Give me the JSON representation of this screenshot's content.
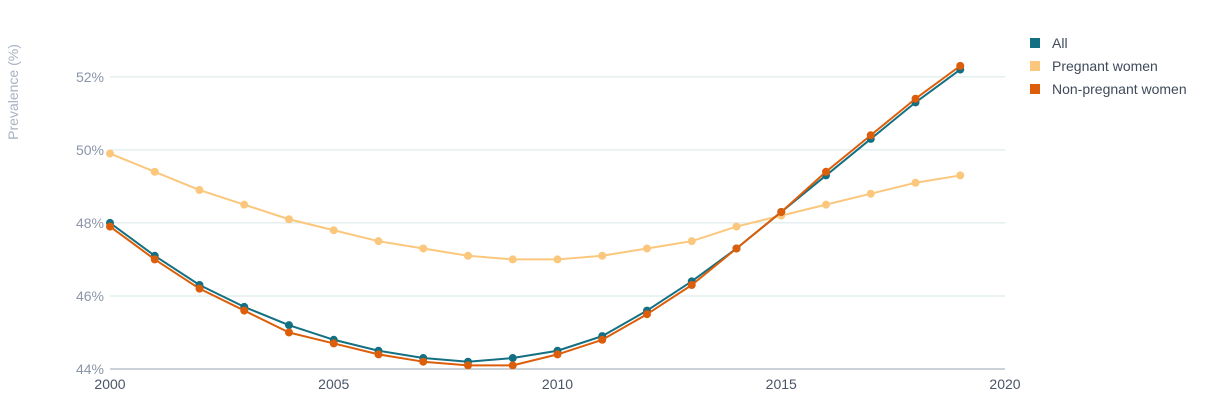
{
  "chart_data": {
    "type": "line",
    "ylabel": "Prevalence (%)",
    "xlabel": "",
    "xlim": [
      2000,
      2020
    ],
    "ylim": [
      44,
      53.2
    ],
    "x_ticks": [
      "2000",
      "2005",
      "2010",
      "2015",
      "2020"
    ],
    "y_ticks": [
      "44%",
      "46%",
      "48%",
      "50%",
      "52%"
    ],
    "grid": "horizontal",
    "legend_position": "top-right",
    "x": [
      2000,
      2001,
      2002,
      2003,
      2004,
      2005,
      2006,
      2007,
      2008,
      2009,
      2010,
      2011,
      2012,
      2013,
      2014,
      2015,
      2016,
      2017,
      2018,
      2019
    ],
    "series": [
      {
        "name": "Pregnant women",
        "color": "#fbc77d",
        "values": [
          49.9,
          49.4,
          48.9,
          48.5,
          48.1,
          47.8,
          47.5,
          47.3,
          47.1,
          47.0,
          47.0,
          47.1,
          47.3,
          47.5,
          47.9,
          48.2,
          48.5,
          48.8,
          49.1,
          49.3
        ]
      },
      {
        "name": "All",
        "color": "#137083",
        "values": [
          48.0,
          47.1,
          46.3,
          45.7,
          45.2,
          44.8,
          44.5,
          44.3,
          44.2,
          44.3,
          44.5,
          44.9,
          45.6,
          46.4,
          47.3,
          48.3,
          49.3,
          50.3,
          51.3,
          52.2
        ]
      },
      {
        "name": "Non-pregnant women",
        "color": "#dc5e0a",
        "values": [
          47.9,
          47.0,
          46.2,
          45.6,
          45.0,
          44.7,
          44.4,
          44.2,
          44.1,
          44.1,
          44.4,
          44.8,
          45.5,
          46.3,
          47.3,
          48.3,
          49.4,
          50.4,
          51.4,
          52.3
        ]
      }
    ],
    "legend": [
      {
        "label": "All",
        "color": "#137083"
      },
      {
        "label": "Pregnant women",
        "color": "#fbc77d"
      },
      {
        "label": "Non-pregnant women",
        "color": "#dc5e0a"
      }
    ]
  }
}
